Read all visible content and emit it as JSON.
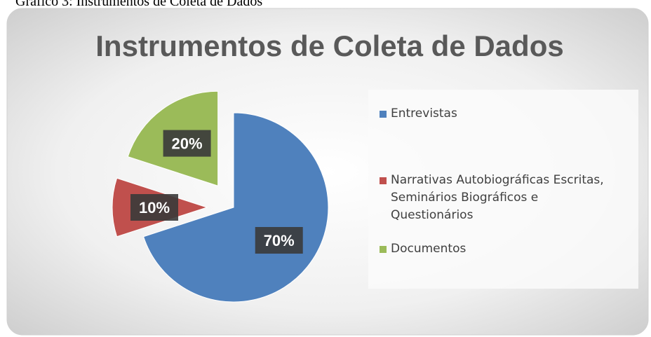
{
  "caption": "Gráfico 3: Instrumentos de Coleta de Dados",
  "chart_data": {
    "type": "pie",
    "title": "Instrumentos de Coleta de Dados",
    "categories": [
      "Entrevistas",
      "Narrativas Autobiográficas Escritas, Seminários Biográficos e Questionários",
      "Documentos"
    ],
    "values": [
      70,
      10,
      20
    ],
    "value_labels": [
      "70%",
      "10%",
      "20%"
    ],
    "colors": [
      "#4f81bd",
      "#c0504d",
      "#9bbb59"
    ],
    "legend": "right"
  }
}
